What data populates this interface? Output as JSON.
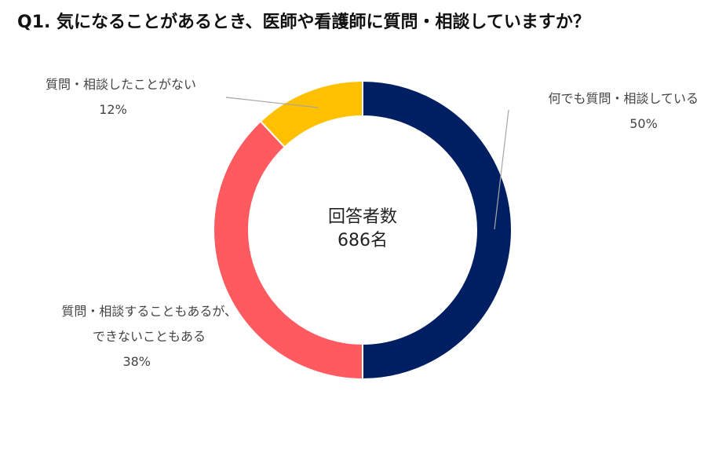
{
  "title": "Q1. 気になることがあるとき、医師や看護師に質問・相談していますか？",
  "center": {
    "line1": "回答者数",
    "line2": "686名"
  },
  "colors": {
    "navy": "#001f63",
    "red": "#ff5a5f",
    "yellow": "#ffc000",
    "leader": "#a6a6a6"
  },
  "chart_data": {
    "type": "pie",
    "donut": true,
    "categories": [
      "何でも質問・相談している",
      "質問・相談することもあるが、できないこともある",
      "質問・相談したことがない"
    ],
    "values": [
      50,
      38,
      12
    ],
    "unit": "%",
    "labels": [
      {
        "lines": [
          "何でも質問・相談している"
        ],
        "pct": "50%"
      },
      {
        "lines": [
          "質問・相談することもあるが、",
          "できないこともある"
        ],
        "pct": "38%"
      },
      {
        "lines": [
          "質問・相談したことがない"
        ],
        "pct": "12%"
      }
    ],
    "slice_colors": [
      "#001f63",
      "#ff5a5f",
      "#ffc000"
    ],
    "start": "12 o'clock",
    "direction": "clockwise"
  }
}
